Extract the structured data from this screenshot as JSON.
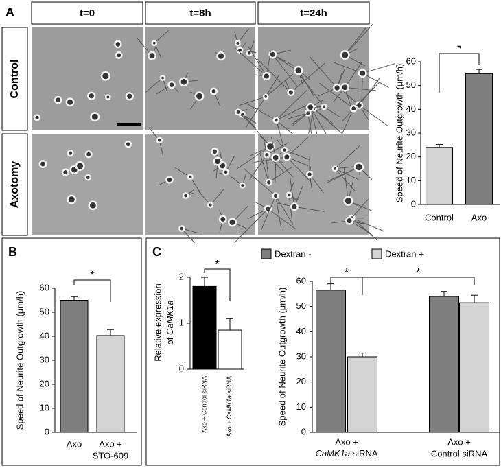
{
  "figure": {
    "panels": [
      "A",
      "B",
      "C"
    ],
    "time_points": [
      "t=0",
      "t=8h",
      "t=24h"
    ],
    "conditions": [
      "Control",
      "Axotomy"
    ]
  },
  "chart_data": [
    {
      "type": "bar",
      "ylabel": "Speed of Neurite Outgrowth (μm/h)",
      "categories": [
        "Control",
        "Axo"
      ],
      "values": [
        24,
        55
      ],
      "errors": [
        1.2,
        1.8
      ],
      "colors": [
        "#d4d4d4",
        "#7f7f7f"
      ],
      "ylim": [
        0,
        60
      ],
      "yticks": [
        0,
        10,
        20,
        30,
        40,
        50,
        60
      ],
      "significance": [
        "*"
      ]
    },
    {
      "type": "bar",
      "ylabel": "Speed of Neurite Outgrowth (μm/h)",
      "categories": [
        "Axo",
        [
          "Axo +",
          "STO-609"
        ]
      ],
      "values": [
        55,
        40.3
      ],
      "errors": [
        1.5,
        2.5
      ],
      "colors": [
        "#7f7f7f",
        "#d4d4d4"
      ],
      "ylim": [
        0,
        60
      ],
      "yticks": [
        0,
        10,
        20,
        30,
        40,
        50,
        60
      ],
      "significance": [
        "*"
      ]
    },
    {
      "type": "bar",
      "ylabel": [
        "Relative expression",
        [
          {
            "text": "of "
          },
          {
            "text": "CaMK1a",
            "italic": true
          }
        ]
      ],
      "categories": [
        "Axo + Control siRNA",
        [
          [
            {
              "text": "Axo + "
            },
            {
              "text": "CaMK1a",
              "italic": true
            },
            {
              "text": " siRNA"
            }
          ]
        ]
      ],
      "values": [
        1.8,
        0.85
      ],
      "errors": [
        0.2,
        0.25
      ],
      "colors": [
        "#000000",
        "#ffffff"
      ],
      "ylim": [
        0,
        2
      ],
      "yticks": [
        0,
        1,
        2
      ],
      "significance": [
        "*"
      ]
    },
    {
      "type": "bar",
      "ylabel": "Speed of Neurite Outgrowth (μm/h)",
      "categories": [
        [
          "Axo +",
          [
            {
              "text": "CaMK1a",
              "italic": true
            },
            {
              "text": " siRNA"
            }
          ]
        ],
        [
          "Axo +",
          "Control siRNA"
        ]
      ],
      "series": [
        {
          "name": "Dextran -",
          "color": "#7f7f7f",
          "values": [
            56.5,
            54
          ],
          "errors": [
            2.5,
            2
          ]
        },
        {
          "name": "Dextran +",
          "color": "#d4d4d4",
          "values": [
            30,
            51.5
          ],
          "errors": [
            1.5,
            3
          ]
        }
      ],
      "ylim": [
        0,
        60
      ],
      "yticks": [
        0,
        10,
        20,
        30,
        40,
        50,
        60
      ],
      "significance": [
        "*",
        "*"
      ]
    }
  ]
}
